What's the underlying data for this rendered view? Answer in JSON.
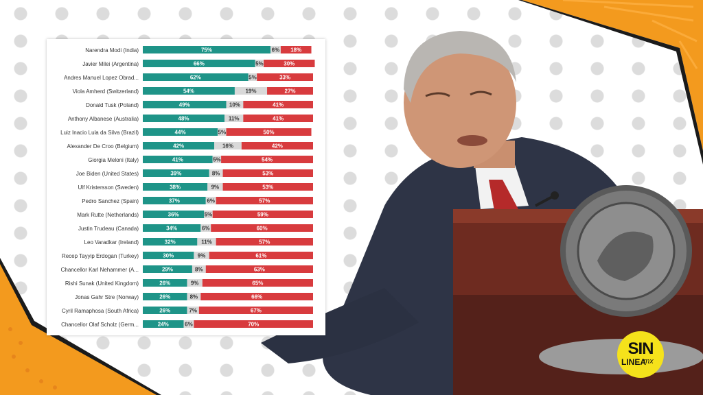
{
  "colors": {
    "positive": "#1e9488",
    "neutral": "#d9d9d9",
    "negative": "#d83b3e",
    "accent_orange": "#f39a1e"
  },
  "logo": {
    "line1": "SIN",
    "line2": "LINEA",
    "line3": ".mx"
  },
  "chart_data": {
    "type": "bar",
    "stacked": true,
    "orientation": "horizontal",
    "xlim": [
      0,
      100
    ],
    "categories": [
      "Narendra Modi (India)",
      "Javier Milei (Argentina)",
      "Andres Manuel Lopez Obrad...",
      "Viola Amherd (Switzerland)",
      "Donald Tusk (Poland)",
      "Anthony Albanese (Australia)",
      "Luiz Inacio Lula da Silva (Brazil)",
      "Alexander De Croo (Belgium)",
      "Giorgia Meloni (Italy)",
      "Joe Biden (United States)",
      "Ulf Kristersson (Sweden)",
      "Pedro Sanchez (Spain)",
      "Mark Rutte (Netherlands)",
      "Justin Trudeau (Canada)",
      "Leo Varadkar (Ireland)",
      "Recep Tayyip Erdogan (Turkey)",
      "Chancellor Karl Nehammer (A...",
      "Rishi Sunak (United Kingdom)",
      "Jonas Gahr Stre (Norway)",
      "Cyril Ramaphosa (South Africa)",
      "Chancellor Olaf Scholz (Germ..."
    ],
    "series": [
      {
        "values": [
          75,
          66,
          62,
          54,
          49,
          48,
          44,
          42,
          41,
          39,
          38,
          37,
          36,
          34,
          32,
          30,
          29,
          26,
          26,
          26,
          24
        ]
      },
      {
        "values": [
          6,
          5,
          5,
          19,
          10,
          11,
          5,
          16,
          5,
          8,
          9,
          6,
          5,
          6,
          11,
          9,
          8,
          9,
          8,
          7,
          6
        ]
      },
      {
        "values": [
          18,
          30,
          33,
          27,
          41,
          41,
          50,
          42,
          54,
          53,
          53,
          57,
          59,
          60,
          57,
          61,
          63,
          65,
          66,
          67,
          70
        ]
      }
    ],
    "value_suffix": "%"
  }
}
